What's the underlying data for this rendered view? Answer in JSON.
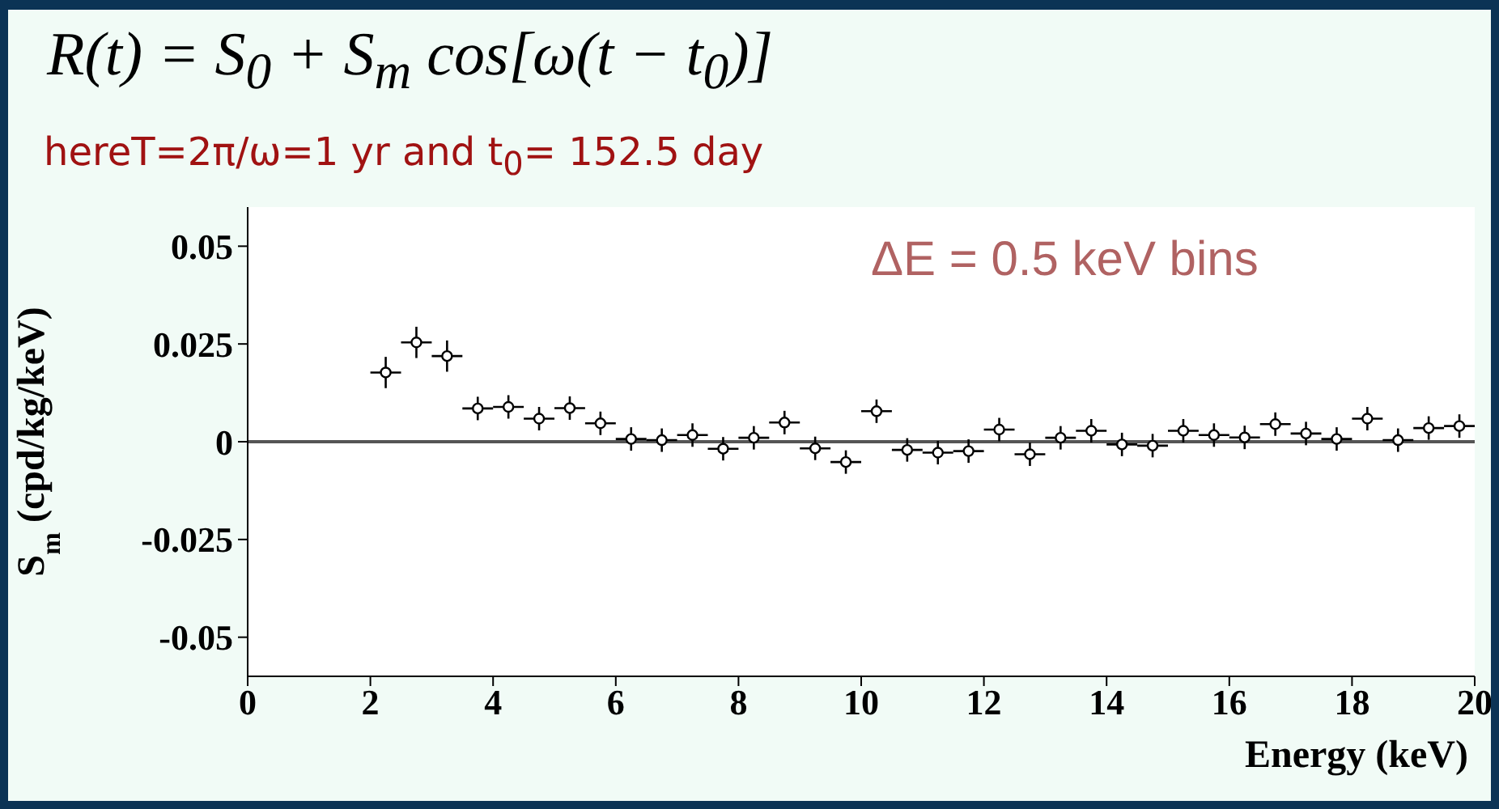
{
  "chart_data": {
    "type": "scatter",
    "title": "R(t) = S$_{0}$ + S$_{m}$ cos[ω(t − t$_{0}$)]",
    "subtitle": "hereT=2π/ω=1 yr and t$_{0}$= 152.5 day",
    "xlabel": "Energy (keV)",
    "ylabel": "S$_{m}$ (cpd/kg/keV)",
    "annotations": [
      "ΔE = 0.5 keV bins"
    ],
    "x": [
      2.25,
      2.75,
      3.25,
      3.75,
      4.25,
      4.75,
      5.25,
      5.75,
      6.25,
      6.75,
      7.25,
      7.75,
      8.25,
      8.75,
      9.25,
      9.75,
      10.25,
      10.75,
      11.25,
      11.75,
      12.25,
      12.75,
      13.25,
      13.75,
      14.25,
      14.75,
      15.25,
      15.75,
      16.25,
      16.75,
      17.25,
      17.75,
      18.25,
      18.75,
      19.25,
      19.75
    ],
    "values": [
      0.0177,
      0.0254,
      0.0219,
      0.0085,
      0.0089,
      0.0059,
      0.0086,
      0.0047,
      0.0007,
      0.0004,
      0.0017,
      -0.0018,
      0.001,
      0.0049,
      -0.0017,
      -0.0052,
      0.0078,
      -0.0021,
      -0.0028,
      -0.0024,
      0.0031,
      -0.0032,
      0.001,
      0.0028,
      -0.0007,
      -0.001,
      0.0028,
      0.0017,
      0.0011,
      0.0045,
      0.0021,
      0.0007,
      0.0059,
      0.0004,
      0.0035,
      0.004
    ],
    "errors": [
      0.004,
      0.004,
      0.004,
      0.003,
      0.003,
      0.003,
      0.003,
      0.003,
      0.003,
      0.003,
      0.003,
      0.003,
      0.003,
      0.003,
      0.003,
      0.003,
      0.003,
      0.003,
      0.003,
      0.003,
      0.003,
      0.003,
      0.003,
      0.003,
      0.003,
      0.003,
      0.003,
      0.003,
      0.003,
      0.003,
      0.003,
      0.003,
      0.003,
      0.003,
      0.003,
      0.003
    ],
    "xerrors": [
      0.25,
      0.25,
      0.25,
      0.25,
      0.25,
      0.25,
      0.25,
      0.25,
      0.25,
      0.25,
      0.25,
      0.25,
      0.25,
      0.25,
      0.25,
      0.25,
      0.25,
      0.25,
      0.25,
      0.25,
      0.25,
      0.25,
      0.25,
      0.25,
      0.25,
      0.25,
      0.25,
      0.25,
      0.25,
      0.25,
      0.25,
      0.25,
      0.25,
      0.25,
      0.25,
      0.25
    ],
    "color": "#000000",
    "marker": "circle",
    "xlim": [
      0,
      20
    ],
    "xticks": [
      0,
      2,
      4,
      6,
      8,
      10,
      12,
      14,
      16,
      18,
      20
    ],
    "ylim": [
      -0.06,
      0.06
    ],
    "yticks": [
      -0.05,
      -0.025,
      0,
      0.025,
      0.05
    ],
    "ref_lines": [
      {
        "axis": "y",
        "value": 0,
        "color": "#555555"
      }
    ],
    "grid": false,
    "legend": false
  }
}
